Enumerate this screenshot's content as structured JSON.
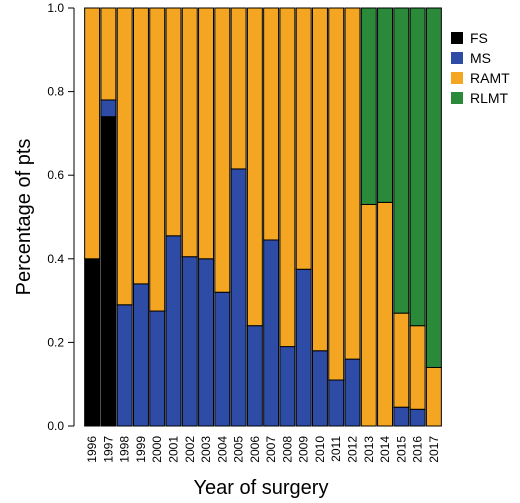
{
  "chart_data": {
    "type": "bar",
    "stacked": true,
    "xlabel": "Year of surgery",
    "ylabel": "Percentage of pts",
    "ylim": [
      0,
      1
    ],
    "yticks": [
      "0.0",
      "0.2",
      "0.4",
      "0.6",
      "0.8",
      "1.0"
    ],
    "categories": [
      "1996",
      "1997",
      "1998",
      "1999",
      "2000",
      "2001",
      "2002",
      "2003",
      "2004",
      "2005",
      "2006",
      "2007",
      "2008",
      "2009",
      "2010",
      "2011",
      "2012",
      "2013",
      "2014",
      "2015",
      "2016",
      "2017"
    ],
    "series": [
      {
        "name": "FS",
        "color": "#000000",
        "values": [
          0.4,
          0.74,
          0,
          0,
          0,
          0,
          0,
          0,
          0,
          0,
          0,
          0,
          0,
          0,
          0,
          0,
          0,
          0,
          0,
          0,
          0,
          0
        ]
      },
      {
        "name": "MS",
        "color": "#2e4ba6",
        "values": [
          0,
          0.04,
          0.29,
          0.34,
          0.275,
          0.455,
          0.405,
          0.4,
          0.32,
          0.615,
          0.24,
          0.445,
          0.19,
          0.375,
          0.18,
          0.11,
          0.16,
          0,
          0,
          0.045,
          0.04,
          0
        ]
      },
      {
        "name": "RAMT",
        "color": "#f4a622",
        "values": [
          0.6,
          0.22,
          0.71,
          0.66,
          0.725,
          0.545,
          0.595,
          0.6,
          0.68,
          0.385,
          0.76,
          0.555,
          0.81,
          0.625,
          0.82,
          0.89,
          0.84,
          0.53,
          0.535,
          0.225,
          0.2,
          0.14
        ]
      },
      {
        "name": "RLMT",
        "color": "#2a8a3a",
        "values": [
          0,
          0,
          0,
          0,
          0,
          0,
          0,
          0,
          0,
          0,
          0,
          0,
          0,
          0,
          0,
          0,
          0,
          0.47,
          0.465,
          0.73,
          0.76,
          0.86
        ]
      }
    ],
    "legend_position": "right",
    "grid": false
  }
}
